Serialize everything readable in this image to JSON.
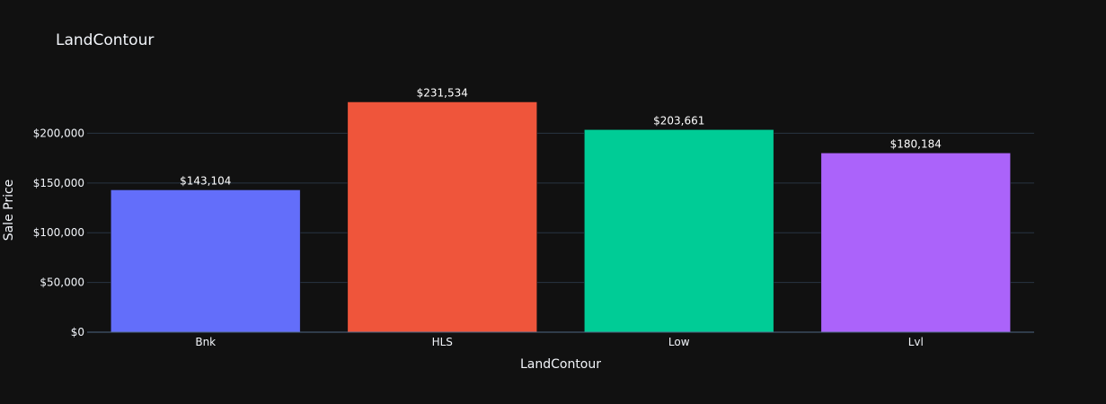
{
  "chart_data": {
    "type": "bar",
    "title": "LandContour",
    "xlabel": "LandContour",
    "ylabel": "Sale Price",
    "categories": [
      "Bnk",
      "HLS",
      "Low",
      "Lvl"
    ],
    "values": [
      143104,
      231534,
      203661,
      180184
    ],
    "value_labels": [
      "$143,104",
      "$231,534",
      "$203,661",
      "$180,184"
    ],
    "colors": [
      "#636efa",
      "#EF553B",
      "#00cc96",
      "#ab63fa"
    ],
    "ylim": [
      0,
      243720
    ],
    "yticks": [
      0,
      50000,
      100000,
      150000,
      200000
    ],
    "ytick_labels": [
      "$0",
      "$50,000",
      "$100,000",
      "$150,000",
      "$200,000"
    ],
    "grid": true,
    "legend": "none",
    "background": "#111111"
  }
}
